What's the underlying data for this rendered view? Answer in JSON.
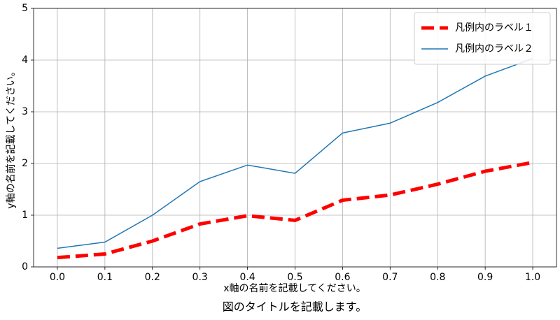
{
  "chart_data": {
    "type": "line",
    "title": "図のタイトルを記載します。",
    "xlabel": "x軸の名前を記載してください。",
    "ylabel": "y軸の名前を記載してください。",
    "x": [
      0.0,
      0.1,
      0.2,
      0.3,
      0.4,
      0.5,
      0.6,
      0.7,
      0.8,
      0.9,
      1.0
    ],
    "series": [
      {
        "name": "凡例内のラベル１",
        "color": "#ff0000",
        "dashed": true,
        "values": [
          0.18,
          0.25,
          0.5,
          0.83,
          0.99,
          0.9,
          1.29,
          1.39,
          1.6,
          1.85,
          2.02
        ]
      },
      {
        "name": "凡例内のラベル２",
        "color": "#1f77b4",
        "dashed": false,
        "values": [
          0.36,
          0.48,
          1.0,
          1.65,
          1.97,
          1.81,
          2.59,
          2.78,
          3.18,
          3.69,
          4.03
        ]
      }
    ],
    "xlim": [
      -0.05,
      1.05
    ],
    "xticks": [
      {
        "value": 0,
        "label": "0.0"
      },
      0.1,
      0.2,
      0.3,
      0.4,
      0.5,
      0.6,
      0.7,
      0.8,
      0.9,
      {
        "value": 1,
        "label": "1.0"
      }
    ],
    "ylim": [
      0,
      5
    ],
    "yticks": [
      0,
      1,
      2,
      3,
      4,
      5
    ],
    "grid": true,
    "legend": "upper right"
  }
}
